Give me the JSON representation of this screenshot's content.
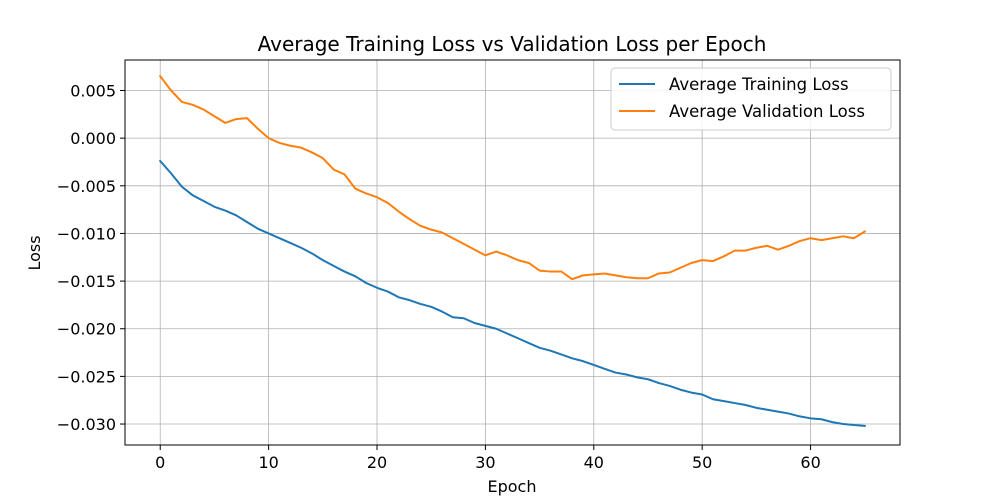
{
  "chart_data": {
    "type": "line",
    "title": "Average Training Loss vs Validation Loss per Epoch",
    "xlabel": "Epoch",
    "ylabel": "Loss",
    "xlim": [
      -3.25,
      68.25
    ],
    "ylim": [
      -0.0322,
      0.0082
    ],
    "xticks": [
      0,
      10,
      20,
      30,
      40,
      50,
      60
    ],
    "xtick_labels": [
      "0",
      "10",
      "20",
      "30",
      "40",
      "50",
      "60"
    ],
    "yticks": [
      0.005,
      0.0,
      -0.005,
      -0.01,
      -0.015,
      -0.02,
      -0.025,
      -0.03
    ],
    "ytick_labels": [
      "0.005",
      "0.000",
      "−0.005",
      "−0.010",
      "−0.015",
      "−0.020",
      "−0.025",
      "−0.030"
    ],
    "grid": true,
    "legend_position": "top-right",
    "x": [
      0,
      1,
      2,
      3,
      4,
      5,
      6,
      7,
      8,
      9,
      10,
      11,
      12,
      13,
      14,
      15,
      16,
      17,
      18,
      19,
      20,
      21,
      22,
      23,
      24,
      25,
      26,
      27,
      28,
      29,
      30,
      31,
      32,
      33,
      34,
      35,
      36,
      37,
      38,
      39,
      40,
      41,
      42,
      43,
      44,
      45,
      46,
      47,
      48,
      49,
      50,
      51,
      52,
      53,
      54,
      55,
      56,
      57,
      58,
      59,
      60,
      61,
      62,
      63,
      64,
      65
    ],
    "series": [
      {
        "name": "Average Training Loss",
        "color": "#1f77b4",
        "values": [
          -0.0024,
          -0.0037,
          -0.0051,
          -0.006,
          -0.0066,
          -0.0072,
          -0.0076,
          -0.0081,
          -0.0088,
          -0.0095,
          -0.01,
          -0.0105,
          -0.011,
          -0.0115,
          -0.0121,
          -0.0128,
          -0.0134,
          -0.014,
          -0.0145,
          -0.0152,
          -0.0157,
          -0.0161,
          -0.0167,
          -0.017,
          -0.0174,
          -0.0177,
          -0.0182,
          -0.0188,
          -0.0189,
          -0.0194,
          -0.0197,
          -0.02,
          -0.0205,
          -0.021,
          -0.0215,
          -0.022,
          -0.0223,
          -0.0227,
          -0.0231,
          -0.0234,
          -0.0238,
          -0.0242,
          -0.0246,
          -0.0248,
          -0.0251,
          -0.0253,
          -0.0257,
          -0.026,
          -0.0264,
          -0.0267,
          -0.0269,
          -0.0274,
          -0.0276,
          -0.0278,
          -0.028,
          -0.0283,
          -0.0285,
          -0.0287,
          -0.0289,
          -0.0292,
          -0.0294,
          -0.0295,
          -0.0298,
          -0.03,
          -0.0301,
          -0.0302
        ]
      },
      {
        "name": "Average Validation Loss",
        "color": "#ff7f0e",
        "values": [
          0.0065,
          0.005,
          0.0038,
          0.0035,
          0.003,
          0.0023,
          0.0016,
          0.002,
          0.0021,
          0.001,
          0.0,
          -0.0005,
          -0.0008,
          -0.001,
          -0.0015,
          -0.0021,
          -0.0033,
          -0.0038,
          -0.0053,
          -0.0058,
          -0.0062,
          -0.0068,
          -0.0077,
          -0.0085,
          -0.0092,
          -0.0096,
          -0.0099,
          -0.0105,
          -0.0111,
          -0.0117,
          -0.0123,
          -0.0119,
          -0.0123,
          -0.0128,
          -0.0131,
          -0.0139,
          -0.014,
          -0.014,
          -0.0148,
          -0.0144,
          -0.0143,
          -0.0142,
          -0.0144,
          -0.0146,
          -0.0147,
          -0.0147,
          -0.0142,
          -0.0141,
          -0.0136,
          -0.0131,
          -0.0128,
          -0.0129,
          -0.0124,
          -0.0118,
          -0.0118,
          -0.0115,
          -0.0113,
          -0.0117,
          -0.0113,
          -0.0108,
          -0.0105,
          -0.0107,
          -0.0105,
          -0.0103,
          -0.0105,
          -0.0098
        ]
      }
    ]
  }
}
